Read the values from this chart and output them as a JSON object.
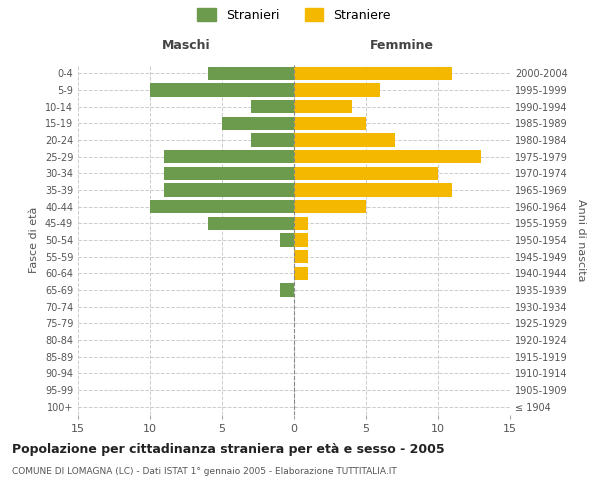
{
  "age_groups": [
    "100+",
    "95-99",
    "90-94",
    "85-89",
    "80-84",
    "75-79",
    "70-74",
    "65-69",
    "60-64",
    "55-59",
    "50-54",
    "45-49",
    "40-44",
    "35-39",
    "30-34",
    "25-29",
    "20-24",
    "15-19",
    "10-14",
    "5-9",
    "0-4"
  ],
  "birth_years": [
    "≤ 1904",
    "1905-1909",
    "1910-1914",
    "1915-1919",
    "1920-1924",
    "1925-1929",
    "1930-1934",
    "1935-1939",
    "1940-1944",
    "1945-1949",
    "1950-1954",
    "1955-1959",
    "1960-1964",
    "1965-1969",
    "1970-1974",
    "1975-1979",
    "1980-1984",
    "1985-1989",
    "1990-1994",
    "1995-1999",
    "2000-2004"
  ],
  "males": [
    0,
    0,
    0,
    0,
    0,
    0,
    0,
    1,
    0,
    0,
    1,
    6,
    10,
    9,
    9,
    9,
    3,
    5,
    3,
    10,
    6
  ],
  "females": [
    0,
    0,
    0,
    0,
    0,
    0,
    0,
    0,
    1,
    1,
    1,
    1,
    5,
    11,
    10,
    13,
    7,
    5,
    4,
    6,
    11
  ],
  "male_color": "#6d9b4e",
  "female_color": "#f5b800",
  "title": "Popolazione per cittadinanza straniera per età e sesso - 2005",
  "subtitle": "COMUNE DI LOMAGNA (LC) - Dati ISTAT 1° gennaio 2005 - Elaborazione TUTTITALIA.IT",
  "xlabel_left": "Maschi",
  "xlabel_right": "Femmine",
  "ylabel_left": "Fasce di età",
  "ylabel_right": "Anni di nascita",
  "legend_male": "Stranieri",
  "legend_female": "Straniere",
  "xlim": 15,
  "background_color": "#ffffff",
  "grid_color": "#cccccc",
  "bar_height": 0.8
}
